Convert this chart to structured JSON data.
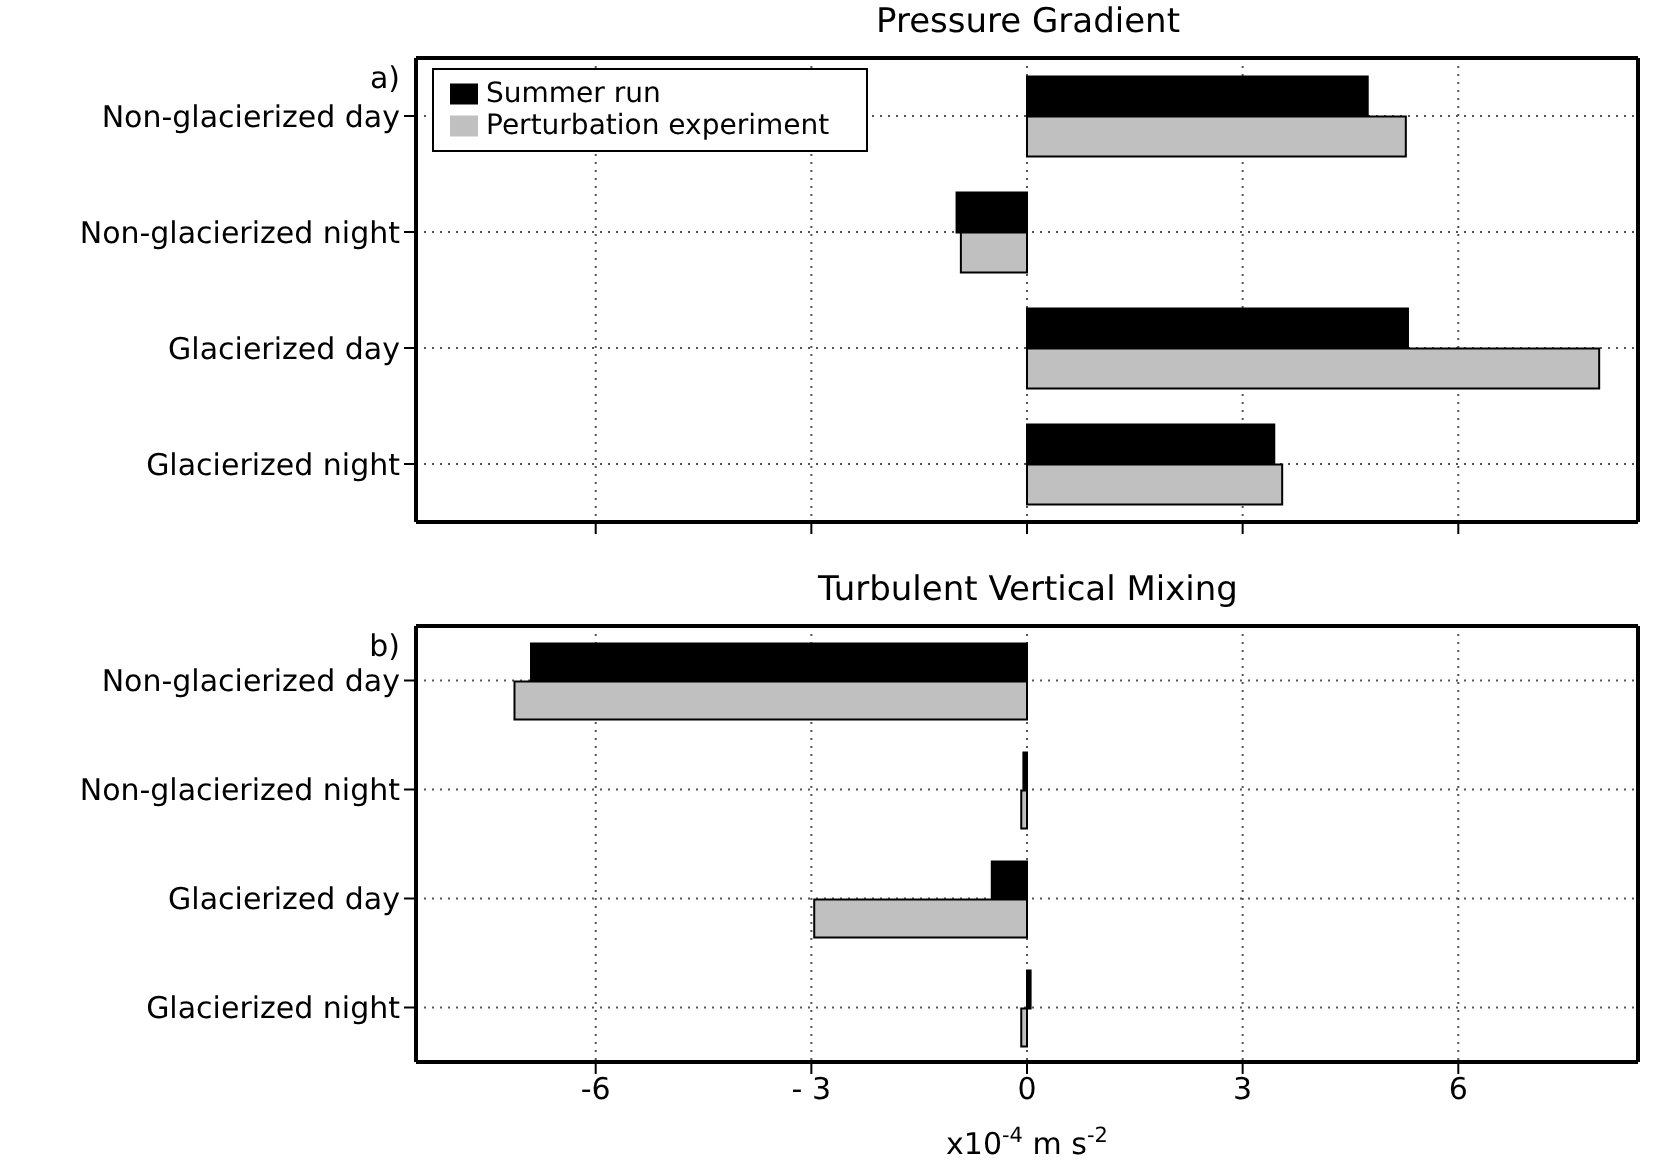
{
  "chart_data": [
    {
      "type": "bar",
      "orientation": "horizontal",
      "title": "Pressure Gradient",
      "annotations": [
        "a)"
      ],
      "categories": [
        "Non-glacierized day",
        "Non-glacierized night",
        "Glacierized day",
        "Glacierized night"
      ],
      "series": [
        {
          "name": "Summer run",
          "color": "#000000",
          "values": [
            4.74,
            -0.98,
            5.3,
            3.44
          ]
        },
        {
          "name": "Perturbation experiment",
          "color": "#c0c0c0",
          "values": [
            5.27,
            -0.92,
            7.96,
            3.55
          ]
        }
      ],
      "xlim": [
        -8.5,
        8.5
      ],
      "xticks": [
        -6,
        -3,
        0,
        3,
        6
      ],
      "tick_labels": "y",
      "grid": true,
      "legend": "top left"
    },
    {
      "type": "bar",
      "orientation": "horizontal",
      "title": "Turbulent Vertical Mixing",
      "annotations": [
        "b)"
      ],
      "xlabel": "x10$^{-4}$ m s$^{-2}$",
      "categories": [
        "Non-glacierized day",
        "Non-glacierized night",
        "Glacierized day",
        "Glacierized night"
      ],
      "series": [
        {
          "color": "#000000",
          "values": [
            -6.9,
            -0.05,
            -0.49,
            0.05
          ]
        },
        {
          "color": "#c0c0c0",
          "values": [
            -7.13,
            -0.08,
            -2.96,
            -0.08
          ]
        }
      ],
      "xlim": [
        -8.5,
        8.5
      ],
      "xticks": [
        -6,
        {
          "value": -3,
          "label": "- 3"
        },
        0,
        3,
        6
      ],
      "grid": true,
      "legend": false
    }
  ]
}
